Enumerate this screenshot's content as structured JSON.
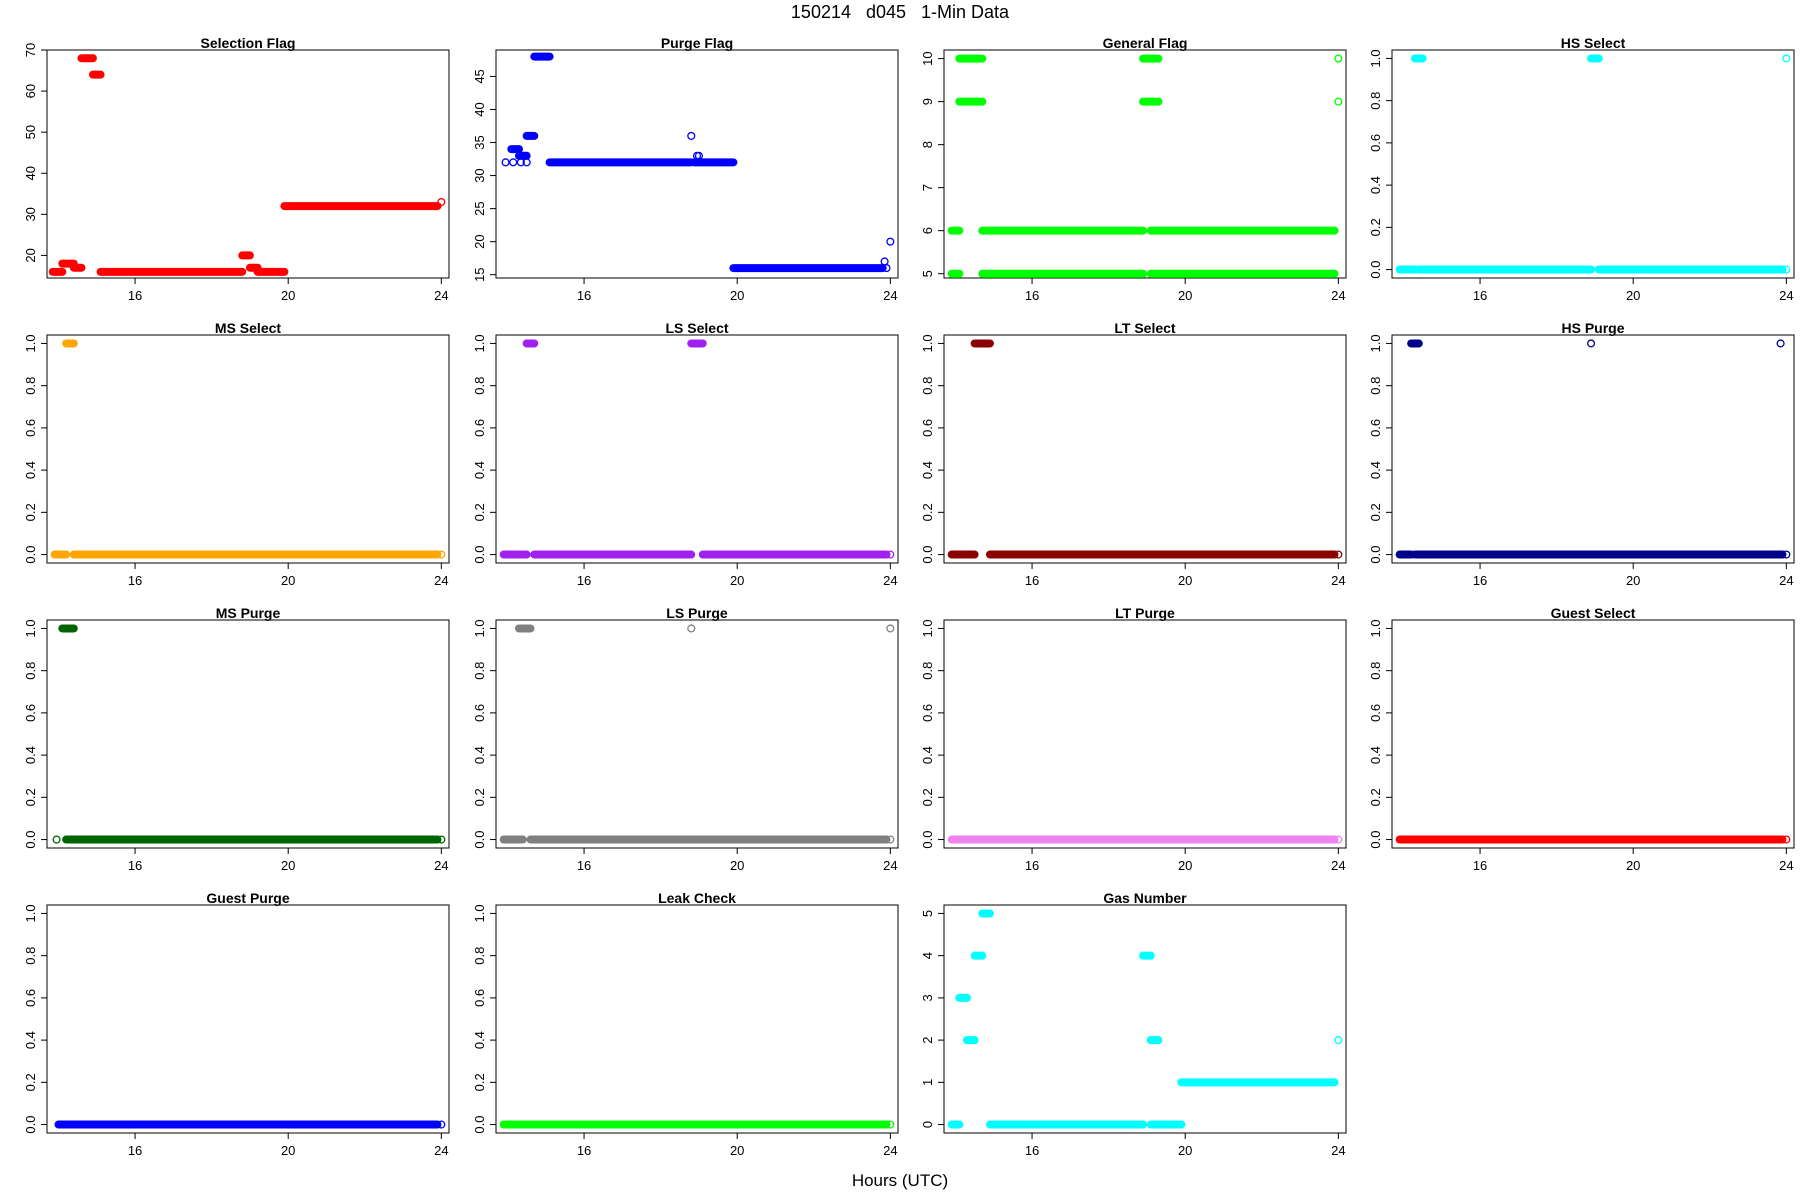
{
  "title": "150214   d045   1-Min Data",
  "xlabel": "Hours (UTC)",
  "chart_data": [
    {
      "type": "scatter",
      "title": "Selection Flag",
      "color": "#ff0000",
      "xlim": [
        13.7,
        24.2
      ],
      "ylim": [
        14.5,
        70
      ],
      "xticks": [
        16,
        20,
        24
      ],
      "yticks": [
        20,
        30,
        40,
        50,
        60,
        70
      ],
      "segments": [
        [
          13.85,
          14.1,
          16
        ],
        [
          14.1,
          14.4,
          18
        ],
        [
          14.4,
          14.6,
          17
        ],
        [
          14.6,
          14.9,
          68
        ],
        [
          14.9,
          15.1,
          64
        ],
        [
          15.1,
          18.8,
          16
        ],
        [
          18.8,
          19.0,
          20
        ],
        [
          19.0,
          19.2,
          17
        ],
        [
          19.2,
          19.9,
          16
        ],
        [
          19.9,
          23.9,
          32
        ]
      ],
      "points": [
        [
          24.0,
          33
        ]
      ]
    },
    {
      "type": "scatter",
      "title": "Purge Flag",
      "color": "#0000ff",
      "xlim": [
        13.7,
        24.2
      ],
      "ylim": [
        14.5,
        49
      ],
      "xticks": [
        16,
        20,
        24
      ],
      "yticks": [
        15,
        20,
        25,
        30,
        35,
        40,
        45
      ],
      "segments": [
        [
          14.1,
          14.3,
          34
        ],
        [
          14.3,
          14.5,
          33
        ],
        [
          14.5,
          14.7,
          36
        ],
        [
          14.7,
          15.1,
          48
        ],
        [
          15.1,
          18.8,
          32
        ],
        [
          18.9,
          19.9,
          32
        ],
        [
          19.9,
          23.8,
          16
        ]
      ],
      "points": [
        [
          13.95,
          32
        ],
        [
          14.15,
          32
        ],
        [
          14.35,
          32
        ],
        [
          14.5,
          32
        ],
        [
          18.8,
          36
        ],
        [
          18.9,
          32
        ],
        [
          18.95,
          33
        ],
        [
          19.0,
          33
        ],
        [
          23.85,
          17
        ],
        [
          23.9,
          16
        ],
        [
          24.0,
          20
        ]
      ]
    },
    {
      "type": "scatter",
      "title": "General Flag",
      "color": "#00ff00",
      "xlim": [
        13.7,
        24.2
      ],
      "ylim": [
        4.9,
        10.2
      ],
      "xticks": [
        16,
        20,
        24
      ],
      "yticks": [
        5,
        6,
        7,
        8,
        9,
        10
      ],
      "segments": [
        [
          13.9,
          14.1,
          6
        ],
        [
          13.9,
          14.1,
          5
        ],
        [
          14.1,
          14.7,
          10
        ],
        [
          14.1,
          14.7,
          9
        ],
        [
          14.7,
          18.9,
          6
        ],
        [
          14.7,
          18.9,
          5
        ],
        [
          18.9,
          19.3,
          10
        ],
        [
          18.9,
          19.3,
          9
        ],
        [
          19.1,
          23.9,
          6
        ],
        [
          19.1,
          23.9,
          5
        ]
      ],
      "points": [
        [
          24.0,
          10
        ],
        [
          24.0,
          9
        ]
      ]
    },
    {
      "type": "scatter",
      "title": "HS Select",
      "color": "#00ffff",
      "xlim": [
        13.7,
        24.2
      ],
      "ylim": [
        -0.04,
        1.04
      ],
      "xticks": [
        16,
        20,
        24
      ],
      "yticks": [
        0.0,
        0.2,
        0.4,
        0.6,
        0.8,
        1.0
      ],
      "segments": [
        [
          13.9,
          14.3,
          0
        ],
        [
          14.4,
          18.9,
          0
        ],
        [
          19.1,
          23.9,
          0
        ],
        [
          14.3,
          14.5,
          1
        ],
        [
          18.9,
          19.1,
          1
        ]
      ],
      "points": [
        [
          24.0,
          1
        ],
        [
          24.0,
          0
        ]
      ]
    },
    {
      "type": "scatter",
      "title": "MS Select",
      "color": "#ffa500",
      "xlim": [
        13.7,
        24.2
      ],
      "ylim": [
        -0.04,
        1.04
      ],
      "xticks": [
        16,
        20,
        24
      ],
      "yticks": [
        0.0,
        0.2,
        0.4,
        0.6,
        0.8,
        1.0
      ],
      "segments": [
        [
          13.9,
          14.2,
          0
        ],
        [
          14.4,
          23.9,
          0
        ],
        [
          14.2,
          14.4,
          1
        ]
      ],
      "points": [
        [
          24.0,
          0
        ]
      ]
    },
    {
      "type": "scatter",
      "title": "LS Select",
      "color": "#a020f0",
      "xlim": [
        13.7,
        24.2
      ],
      "ylim": [
        -0.04,
        1.04
      ],
      "xticks": [
        16,
        20,
        24
      ],
      "yticks": [
        0.0,
        0.2,
        0.4,
        0.6,
        0.8,
        1.0
      ],
      "segments": [
        [
          13.9,
          14.5,
          0
        ],
        [
          14.7,
          18.8,
          0
        ],
        [
          19.1,
          23.9,
          0
        ],
        [
          14.5,
          14.7,
          1
        ],
        [
          18.8,
          19.1,
          1
        ]
      ],
      "points": [
        [
          24.0,
          0
        ]
      ]
    },
    {
      "type": "scatter",
      "title": "LT Select",
      "color": "#8b0000",
      "xlim": [
        13.7,
        24.2
      ],
      "ylim": [
        -0.04,
        1.04
      ],
      "xticks": [
        16,
        20,
        24
      ],
      "yticks": [
        0.0,
        0.2,
        0.4,
        0.6,
        0.8,
        1.0
      ],
      "segments": [
        [
          13.9,
          14.5,
          0
        ],
        [
          14.9,
          23.9,
          0
        ],
        [
          14.5,
          14.9,
          1
        ]
      ],
      "points": [
        [
          24.0,
          0
        ]
      ]
    },
    {
      "type": "scatter",
      "title": "HS Purge",
      "color": "#00008b",
      "xlim": [
        13.7,
        24.2
      ],
      "ylim": [
        -0.04,
        1.04
      ],
      "xticks": [
        16,
        20,
        24
      ],
      "yticks": [
        0.0,
        0.2,
        0.4,
        0.6,
        0.8,
        1.0
      ],
      "segments": [
        [
          13.9,
          14.2,
          0
        ],
        [
          14.3,
          23.9,
          0
        ],
        [
          14.2,
          14.4,
          1
        ]
      ],
      "points": [
        [
          18.9,
          1
        ],
        [
          23.85,
          1
        ],
        [
          24.0,
          0
        ]
      ]
    },
    {
      "type": "scatter",
      "title": "MS Purge",
      "color": "#006400",
      "xlim": [
        13.7,
        24.2
      ],
      "ylim": [
        -0.04,
        1.04
      ],
      "xticks": [
        16,
        20,
        24
      ],
      "yticks": [
        0.0,
        0.2,
        0.4,
        0.6,
        0.8,
        1.0
      ],
      "segments": [
        [
          14.2,
          23.9,
          0
        ],
        [
          14.1,
          14.4,
          1
        ]
      ],
      "points": [
        [
          13.95,
          0
        ],
        [
          24.0,
          0
        ]
      ]
    },
    {
      "type": "scatter",
      "title": "LS Purge",
      "color": "#808080",
      "xlim": [
        13.7,
        24.2
      ],
      "ylim": [
        -0.04,
        1.04
      ],
      "xticks": [
        16,
        20,
        24
      ],
      "yticks": [
        0.0,
        0.2,
        0.4,
        0.6,
        0.8,
        1.0
      ],
      "segments": [
        [
          13.9,
          14.4,
          0
        ],
        [
          14.6,
          23.9,
          0
        ],
        [
          14.3,
          14.6,
          1
        ]
      ],
      "points": [
        [
          18.8,
          1
        ],
        [
          24.0,
          1
        ],
        [
          24.0,
          0
        ]
      ]
    },
    {
      "type": "scatter",
      "title": "LT Purge",
      "color": "#ee82ee",
      "xlim": [
        13.7,
        24.2
      ],
      "ylim": [
        -0.04,
        1.04
      ],
      "xticks": [
        16,
        20,
        24
      ],
      "yticks": [
        0.0,
        0.2,
        0.4,
        0.6,
        0.8,
        1.0
      ],
      "segments": [
        [
          13.9,
          23.9,
          0
        ]
      ],
      "points": [
        [
          24.0,
          0
        ]
      ]
    },
    {
      "type": "scatter",
      "title": "Guest Select",
      "color": "#ff0000",
      "xlim": [
        13.7,
        24.2
      ],
      "ylim": [
        -0.04,
        1.04
      ],
      "xticks": [
        16,
        20,
        24
      ],
      "yticks": [
        0.0,
        0.2,
        0.4,
        0.6,
        0.8,
        1.0
      ],
      "segments": [
        [
          13.9,
          23.9,
          0
        ]
      ],
      "points": [
        [
          24.0,
          0
        ]
      ]
    },
    {
      "type": "scatter",
      "title": "Guest Purge",
      "color": "#0000ff",
      "xlim": [
        13.7,
        24.2
      ],
      "ylim": [
        -0.04,
        1.04
      ],
      "xticks": [
        16,
        20,
        24
      ],
      "yticks": [
        0.0,
        0.2,
        0.4,
        0.6,
        0.8,
        1.0
      ],
      "segments": [
        [
          14.0,
          23.9,
          0
        ]
      ],
      "points": [
        [
          24.0,
          0
        ]
      ]
    },
    {
      "type": "scatter",
      "title": "Leak Check",
      "color": "#00ff00",
      "xlim": [
        13.7,
        24.2
      ],
      "ylim": [
        -0.04,
        1.04
      ],
      "xticks": [
        16,
        20,
        24
      ],
      "yticks": [
        0.0,
        0.2,
        0.4,
        0.6,
        0.8,
        1.0
      ],
      "segments": [
        [
          13.9,
          23.9,
          0
        ]
      ],
      "points": [
        [
          24.0,
          0
        ]
      ]
    },
    {
      "type": "scatter",
      "title": "Gas Number",
      "color": "#00ffff",
      "xlim": [
        13.7,
        24.2
      ],
      "ylim": [
        -0.2,
        5.2
      ],
      "xticks": [
        16,
        20,
        24
      ],
      "yticks": [
        0,
        1,
        2,
        3,
        4,
        5
      ],
      "segments": [
        [
          13.9,
          14.1,
          0
        ],
        [
          14.1,
          14.3,
          3
        ],
        [
          14.3,
          14.5,
          2
        ],
        [
          14.5,
          14.7,
          4
        ],
        [
          14.7,
          14.9,
          5
        ],
        [
          14.9,
          18.9,
          0
        ],
        [
          18.9,
          19.1,
          4
        ],
        [
          19.1,
          19.3,
          2
        ],
        [
          19.1,
          19.9,
          0
        ],
        [
          19.9,
          23.9,
          1
        ]
      ],
      "points": [
        [
          24.0,
          2
        ]
      ]
    }
  ]
}
